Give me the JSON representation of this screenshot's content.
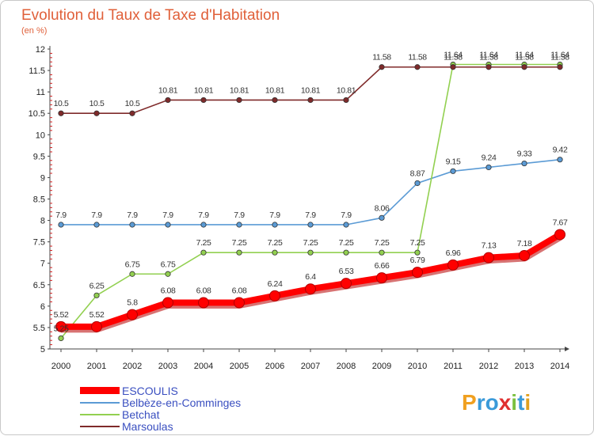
{
  "chart_data": {
    "type": "line",
    "title": "Evolution du Taux de Taxe d'Habitation",
    "subtitle": "(en %)",
    "x": [
      "2000",
      "2001",
      "2002",
      "2003",
      "2004",
      "2005",
      "2006",
      "2007",
      "2008",
      "2009",
      "2010",
      "2011",
      "2012",
      "2013",
      "2014"
    ],
    "ylim": [
      5,
      12
    ],
    "yticks": [
      "5",
      "5.5",
      "6",
      "6.5",
      "7",
      "7.5",
      "8",
      "8.5",
      "9",
      "9.5",
      "10",
      "10.5",
      "11",
      "11.5",
      "12"
    ],
    "grid": false,
    "legend_position": "bottom-left",
    "series": [
      {
        "name": "ESCOULIS",
        "color": "#ff0000",
        "emphasis": true,
        "values": [
          5.52,
          5.52,
          5.8,
          6.08,
          6.08,
          6.08,
          6.24,
          6.4,
          6.53,
          6.66,
          6.79,
          6.96,
          7.13,
          7.18,
          7.67
        ],
        "labels": [
          "5.52",
          "5.52",
          "5.8",
          "6.08",
          "6.08",
          "6.08",
          "6.24",
          "6.4",
          "6.53",
          "6.66",
          "6.79",
          "6.96",
          "7.13",
          "7.18",
          "7.67"
        ]
      },
      {
        "name": "Belbèze-en-Comminges",
        "color": "#5b9bd5",
        "emphasis": false,
        "values": [
          7.9,
          7.9,
          7.9,
          7.9,
          7.9,
          7.9,
          7.9,
          7.9,
          7.9,
          8.06,
          8.87,
          9.15,
          9.24,
          9.33,
          9.42
        ],
        "labels": [
          "7.9",
          "7.9",
          "7.9",
          "7.9",
          "7.9",
          "7.9",
          "7.9",
          "7.9",
          "7.9",
          "8.06",
          "8.87",
          "9.15",
          "9.24",
          "9.33",
          "9.42"
        ]
      },
      {
        "name": "Betchat",
        "color": "#92d050",
        "emphasis": false,
        "values": [
          5.25,
          6.25,
          6.75,
          6.75,
          7.25,
          7.25,
          7.25,
          7.25,
          7.25,
          7.25,
          7.25,
          11.64,
          11.64,
          11.64,
          11.64
        ],
        "labels": [
          "5.25",
          "6.25",
          "6.75",
          "6.75",
          "7.25",
          "7.25",
          "7.25",
          "7.25",
          "7.25",
          "7.25",
          "7.25",
          "11.64",
          "11.64",
          "11.64",
          "11.64"
        ]
      },
      {
        "name": "Marsoulas",
        "color": "#7f2a2a",
        "emphasis": false,
        "values": [
          10.5,
          10.5,
          10.5,
          10.81,
          10.81,
          10.81,
          10.81,
          10.81,
          10.81,
          11.58,
          11.58,
          11.58,
          11.58,
          11.58,
          11.58
        ],
        "labels": [
          "10.5",
          "10.5",
          "10.5",
          "10.81",
          "10.81",
          "10.81",
          "10.81",
          "10.81",
          "10.81",
          "11.58",
          "11.58",
          "11.58",
          "11.58",
          "11.58",
          "11.58"
        ]
      }
    ]
  },
  "logo": {
    "letters": [
      "P",
      "r",
      "o",
      "x",
      "i",
      "t",
      "i"
    ],
    "colors": [
      "#f0a020",
      "#3a9ad9",
      "#3a9ad9",
      "#e03030",
      "#7cc040",
      "#3a9ad9",
      "#e0a020"
    ]
  }
}
